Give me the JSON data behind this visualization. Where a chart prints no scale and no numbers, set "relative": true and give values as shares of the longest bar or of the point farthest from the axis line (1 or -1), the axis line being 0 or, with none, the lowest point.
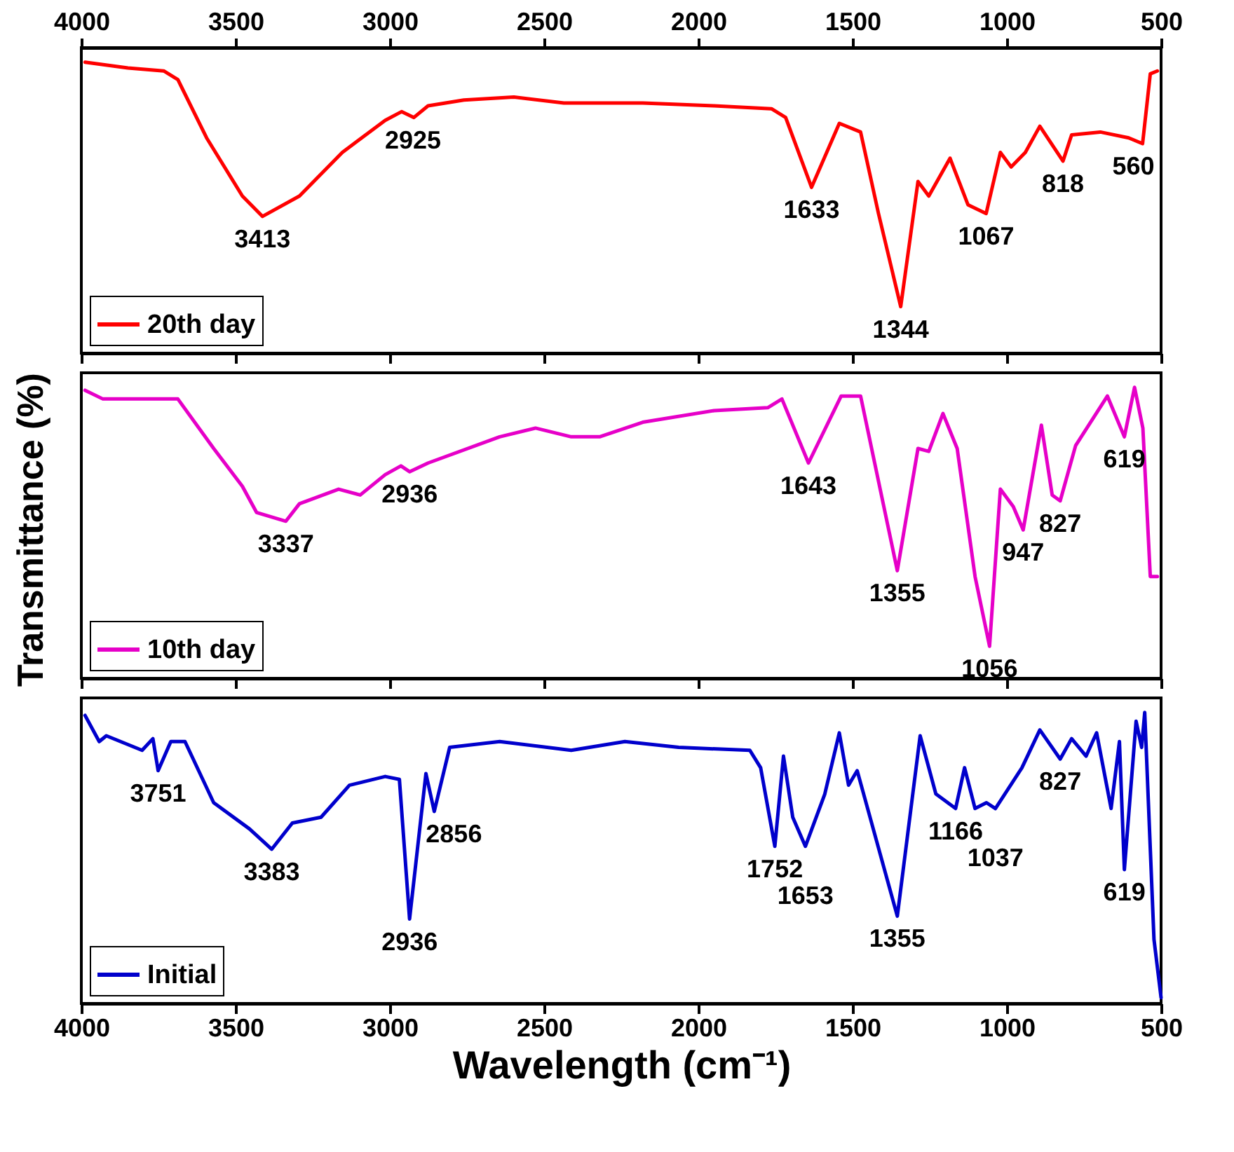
{
  "chart_data": [
    {
      "type": "line",
      "relative": true,
      "xlim": [
        4000,
        500
      ],
      "x2lim": [
        4000,
        500
      ],
      "x2ticks": [
        4000,
        3500,
        3000,
        2500,
        2000,
        1500,
        1000,
        500
      ],
      "tick_labels": "x",
      "legend": "bottom left",
      "series": [
        {
          "name": "20th day",
          "color": "#ff0000",
          "x": [
            3988,
            3849,
            3733,
            3687,
            3594,
            3478,
            3413,
            3293,
            3154,
            3015,
            2962,
            2922,
            2876,
            2760,
            2598,
            2436,
            2180,
            1949,
            1763,
            1717,
            1633,
            1543,
            1474,
            1416,
            1344,
            1288,
            1253,
            1184,
            1126,
            1067,
            1021,
            986,
            940,
            893,
            818,
            790,
            697,
            605,
            560,
            535,
            512
          ],
          "values": [
            1.0,
            0.98,
            0.97,
            0.94,
            0.74,
            0.54,
            0.47,
            0.54,
            0.69,
            0.8,
            0.83,
            0.81,
            0.85,
            0.87,
            0.88,
            0.86,
            0.86,
            0.85,
            0.84,
            0.81,
            0.57,
            0.79,
            0.76,
            0.48,
            0.16,
            0.59,
            0.54,
            0.67,
            0.51,
            0.48,
            0.69,
            0.64,
            0.69,
            0.78,
            0.66,
            0.75,
            0.76,
            0.74,
            0.72,
            0.96,
            0.97
          ]
        }
      ],
      "annotations": [
        {
          "text": "3413",
          "x": 3413,
          "y": 0.47
        },
        {
          "text": "2925",
          "x": 2925,
          "y": 0.81
        },
        {
          "text": "1633",
          "x": 1633,
          "y": 0.57
        },
        {
          "text": "1344",
          "x": 1344,
          "y": 0.16
        },
        {
          "text": "1067",
          "x": 1067,
          "y": 0.48
        },
        {
          "text": "818",
          "x": 818,
          "y": 0.66
        },
        {
          "text": "560",
          "x": 560,
          "y": 0.72
        }
      ]
    },
    {
      "type": "line",
      "relative": true,
      "xlim": [
        4000,
        500
      ],
      "xticks": [
        4000,
        3500,
        3000,
        2500,
        2000,
        1500,
        1000,
        500
      ],
      "tick_labels": false,
      "legend": "bottom left",
      "ylabel": "Transmittance (%)",
      "series": [
        {
          "name": "10th day",
          "color": "#e600c8",
          "x": [
            3988,
            3930,
            3803,
            3687,
            3571,
            3478,
            3432,
            3337,
            3293,
            3166,
            3096,
            3015,
            2964,
            2936,
            2876,
            2644,
            2528,
            2412,
            2320,
            2180,
            1949,
            1775,
            1729,
            1643,
            1537,
            1474,
            1355,
            1288,
            1253,
            1207,
            1161,
            1103,
            1056,
            1021,
            979,
            947,
            888,
            853,
            827,
            777,
            674,
            619,
            586,
            559,
            535,
            512
          ],
          "values": [
            0.99,
            0.96,
            0.96,
            0.96,
            0.79,
            0.66,
            0.57,
            0.54,
            0.6,
            0.65,
            0.63,
            0.7,
            0.73,
            0.71,
            0.74,
            0.83,
            0.86,
            0.83,
            0.83,
            0.88,
            0.92,
            0.93,
            0.96,
            0.74,
            0.97,
            0.97,
            0.37,
            0.79,
            0.78,
            0.91,
            0.79,
            0.35,
            0.11,
            0.65,
            0.59,
            0.51,
            0.87,
            0.63,
            0.61,
            0.8,
            0.97,
            0.83,
            1.0,
            0.86,
            0.35,
            0.35
          ]
        }
      ],
      "annotations": [
        {
          "text": "3337",
          "x": 3337,
          "y": 0.54
        },
        {
          "text": "2936",
          "x": 2936,
          "y": 0.71
        },
        {
          "text": "1643",
          "x": 1643,
          "y": 0.74
        },
        {
          "text": "1355",
          "x": 1355,
          "y": 0.37
        },
        {
          "text": "1056",
          "x": 1056,
          "y": 0.11
        },
        {
          "text": "947",
          "x": 947,
          "y": 0.51
        },
        {
          "text": "827",
          "x": 827,
          "y": 0.61
        },
        {
          "text": "619",
          "x": 619,
          "y": 0.83
        }
      ]
    },
    {
      "type": "line",
      "relative": true,
      "xlim": [
        4000,
        500
      ],
      "xticks": [
        4000,
        3500,
        3000,
        2500,
        2000,
        1500,
        1000,
        500
      ],
      "tick_labels": "x",
      "legend": "bottom left",
      "xlabel": "Wavelength (cm⁻¹)",
      "series": [
        {
          "name": "Initial",
          "color": "#0000cc",
          "x": [
            3988,
            3942,
            3919,
            3803,
            3768,
            3751,
            3710,
            3664,
            3571,
            3455,
            3383,
            3316,
            3223,
            3131,
            3015,
            2969,
            2936,
            2883,
            2856,
            2806,
            2644,
            2412,
            2238,
            2064,
            1833,
            1798,
            1752,
            1724,
            1694,
            1653,
            1590,
            1543,
            1513,
            1485,
            1355,
            1281,
            1230,
            1166,
            1137,
            1103,
            1066,
            1037,
            951,
            893,
            827,
            790,
            743,
            709,
            662,
            635,
            619,
            581,
            563,
            553,
            523,
            500
          ],
          "values": [
            0.99,
            0.9,
            0.92,
            0.87,
            0.91,
            0.8,
            0.9,
            0.9,
            0.69,
            0.6,
            0.53,
            0.62,
            0.64,
            0.75,
            0.78,
            0.77,
            0.29,
            0.79,
            0.66,
            0.88,
            0.9,
            0.87,
            0.9,
            0.88,
            0.87,
            0.81,
            0.54,
            0.85,
            0.64,
            0.54,
            0.72,
            0.93,
            0.75,
            0.8,
            0.3,
            0.92,
            0.72,
            0.67,
            0.81,
            0.67,
            0.69,
            0.67,
            0.81,
            0.94,
            0.84,
            0.91,
            0.85,
            0.93,
            0.67,
            0.9,
            0.46,
            0.97,
            0.88,
            1.0,
            0.22,
            0.02
          ]
        }
      ],
      "annotations": [
        {
          "text": "3751",
          "x": 3751,
          "y": 0.8
        },
        {
          "text": "3383",
          "x": 3383,
          "y": 0.53
        },
        {
          "text": "2936",
          "x": 2936,
          "y": 0.29
        },
        {
          "text": "2856",
          "x": 2856,
          "y": 0.66
        },
        {
          "text": "1752",
          "x": 1752,
          "y": 0.54
        },
        {
          "text": "1653",
          "x": 1653,
          "y": 0.54
        },
        {
          "text": "1355",
          "x": 1355,
          "y": 0.3
        },
        {
          "text": "1166",
          "x": 1166,
          "y": 0.67
        },
        {
          "text": "1037",
          "x": 1037,
          "y": 0.67
        },
        {
          "text": "827",
          "x": 827,
          "y": 0.84
        },
        {
          "text": "619",
          "x": 619,
          "y": 0.46
        }
      ]
    }
  ]
}
